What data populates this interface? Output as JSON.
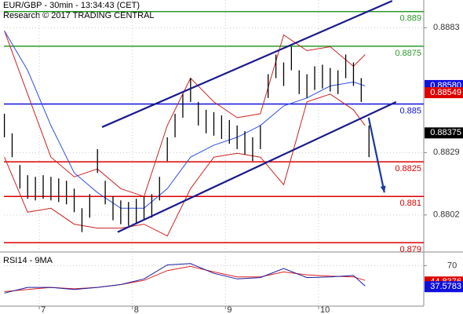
{
  "chart_data": [
    {
      "type": "ohlc",
      "title": "EUR/GBP - 30min - 13:34:43 (CET)",
      "subtitle": "Research © 2017 TRADING CENTRAL",
      "color": "#000000",
      "x": [
        6.625,
        6.7083,
        6.7917,
        6.875,
        6.9583,
        7.0417,
        7.125,
        7.2083,
        7.2917,
        7.375,
        7.4583,
        7.5417,
        7.625,
        7.7083,
        7.7917,
        7.875,
        7.9583,
        8.0417,
        8.125,
        8.2083,
        8.2917,
        8.375,
        8.4583,
        8.5417,
        8.625,
        8.7083,
        8.7917,
        8.875,
        8.9583,
        9.0417,
        9.125,
        9.2083,
        9.2917,
        9.375,
        9.4583,
        9.5417,
        9.625,
        9.7083,
        9.7917,
        9.875,
        9.9583,
        10.0417,
        10.125,
        10.2083,
        10.2917,
        10.375,
        10.4583,
        10.5417
      ],
      "high": [
        0.88458,
        0.88373,
        0.88236,
        0.88192,
        0.88185,
        0.88192,
        0.88185,
        0.88178,
        0.88168,
        0.88134,
        0.88049,
        0.8811,
        0.88305,
        0.88168,
        0.881,
        0.88083,
        0.88076,
        0.8809,
        0.881,
        0.8811,
        0.88185,
        0.88356,
        0.88458,
        0.88543,
        0.88612,
        0.88509,
        0.88475,
        0.88465,
        0.88451,
        0.88431,
        0.88407,
        0.88383,
        0.88356,
        0.88407,
        0.88629,
        0.88714,
        0.8868,
        0.88748,
        0.88646,
        0.88629,
        0.88663,
        0.8867,
        0.88656,
        0.88646,
        0.88714,
        0.8868,
        0.88612,
        0.88407
      ],
      "low": [
        0.88356,
        0.8827,
        0.88134,
        0.8809,
        0.88083,
        0.8809,
        0.88083,
        0.88076,
        0.88066,
        0.88032,
        0.87946,
        0.88008,
        0.88202,
        0.88066,
        0.87997,
        0.8798,
        0.87973,
        0.87987,
        0.87997,
        0.88008,
        0.88083,
        0.88253,
        0.88356,
        0.88441,
        0.88509,
        0.88407,
        0.88373,
        0.88363,
        0.88349,
        0.88328,
        0.88305,
        0.88281,
        0.88253,
        0.88305,
        0.88526,
        0.88612,
        0.88578,
        0.88646,
        0.88543,
        0.88526,
        0.88561,
        0.88567,
        0.88554,
        0.88543,
        0.88612,
        0.88578,
        0.88509,
        0.8827
      ],
      "overlays": [
        {
          "color": "#cc2222",
          "x": [
            6.625,
            6.875,
            7.125,
            7.375,
            7.625,
            7.875,
            8.125,
            8.375,
            8.625,
            8.875,
            9.125,
            9.375,
            9.625,
            9.875,
            10.125,
            10.375,
            10.5
          ],
          "values": [
            0.88817,
            0.88543,
            0.8827,
            0.88185,
            0.88219,
            0.88134,
            0.881,
            0.88407,
            0.88612,
            0.88509,
            0.88441,
            0.88458,
            0.88799,
            0.88731,
            0.88748,
            0.88663,
            0.88714
          ]
        },
        {
          "color": "#cc2222",
          "x": [
            6.625,
            6.875,
            7.125,
            7.375,
            7.625,
            7.875,
            8.125,
            8.375,
            8.625,
            8.875,
            9.125,
            9.375,
            9.625,
            9.875,
            10.125,
            10.375,
            10.5
          ],
          "values": [
            0.8827,
            0.88032,
            0.88049,
            0.8798,
            0.87963,
            0.87963,
            0.8798,
            0.87929,
            0.88134,
            0.8827,
            0.88287,
            0.8827,
            0.88151,
            0.88509,
            0.88543,
            0.88475,
            0.88407
          ]
        },
        {
          "color": "#3050e0",
          "x": [
            6.625,
            6.875,
            7.125,
            7.375,
            7.625,
            7.875,
            8.125,
            8.375,
            8.625,
            8.875,
            9.125,
            9.375,
            9.625,
            9.875,
            10.125,
            10.375,
            10.5
          ],
          "values": [
            0.88817,
            0.88646,
            0.88407,
            0.88202,
            0.88117,
            0.88049,
            0.88049,
            0.88134,
            0.8827,
            0.88322,
            0.88356,
            0.88407,
            0.88492,
            0.88526,
            0.88578,
            0.88595,
            0.88578
          ]
        }
      ],
      "trendlines": [
        {
          "color": "#1a1a8c",
          "x": [
            7.674,
            10.791
          ],
          "values": [
            0.884,
            0.88946
          ]
        },
        {
          "color": "#1a1a8c",
          "x": [
            7.842,
            10.833
          ],
          "values": [
            0.87946,
            0.88509
          ]
        }
      ],
      "arrow": {
        "color": "#1a3a9c",
        "x": [
          10.538,
          10.707
        ],
        "values": [
          0.88441,
          0.88117
        ]
      },
      "levels": [
        {
          "value": 0.889,
          "color": "#2a9a2a"
        },
        {
          "value": 0.8875,
          "color": "#2a9a2a"
        },
        {
          "value": 0.885,
          "color": "#1010dd"
        },
        {
          "value": 0.8825,
          "color": "#dd0000"
        },
        {
          "value": 0.881,
          "color": "#dd0000"
        },
        {
          "value": 0.879,
          "color": "#dd0000"
        }
      ],
      "markers": [
        {
          "value": {
            "value": 0.8858,
            "label": "0.88580"
          },
          "color": "#1010dd"
        },
        {
          "value": 0.88549,
          "color": "#dd0000"
        },
        {
          "value": 0.88375,
          "color": "#000000"
        }
      ],
      "xlim": [
        6.62,
        11.13
      ],
      "ylim": [
        0.8787,
        0.8895
      ],
      "yticks": [
        0.8802,
        0.8829,
        0.8883
      ],
      "grid": true
    },
    {
      "type": "line",
      "title": "RSI14 - 9MA",
      "x": [
        6.625,
        6.875,
        7.125,
        7.375,
        7.625,
        7.875,
        8.125,
        8.375,
        8.625,
        8.875,
        9.125,
        9.375,
        9.625,
        9.875,
        10.125,
        10.375,
        10.5
      ],
      "series": [
        {
          "color": "#dd2222",
          "values": [
            30.0,
            33.2,
            36.5,
            34.3,
            36.5,
            40.8,
            47.3,
            62.4,
            68.9,
            60.3,
            52.7,
            52.7,
            60.3,
            55.9,
            53.8,
            52.7,
            47.3
          ]
        },
        {
          "color": "#1a1a9c",
          "values": [
            27.8,
            36.5,
            36.5,
            33.2,
            36.5,
            40.8,
            49.5,
            71.1,
            73.2,
            58.1,
            49.5,
            51.6,
            65.7,
            51.6,
            52.7,
            54.9,
            38.6
          ]
        }
      ],
      "markers": [
        {
          "value": 44.8376,
          "color": "#dd0000"
        },
        {
          "value": 37.5783,
          "color": "#1010dd"
        }
      ],
      "xlim": [
        6.62,
        11.13
      ],
      "xticks": [
        7,
        8,
        9,
        10
      ],
      "ylim": [
        10,
        85
      ],
      "yticks": [
        70
      ],
      "grid": true
    }
  ]
}
